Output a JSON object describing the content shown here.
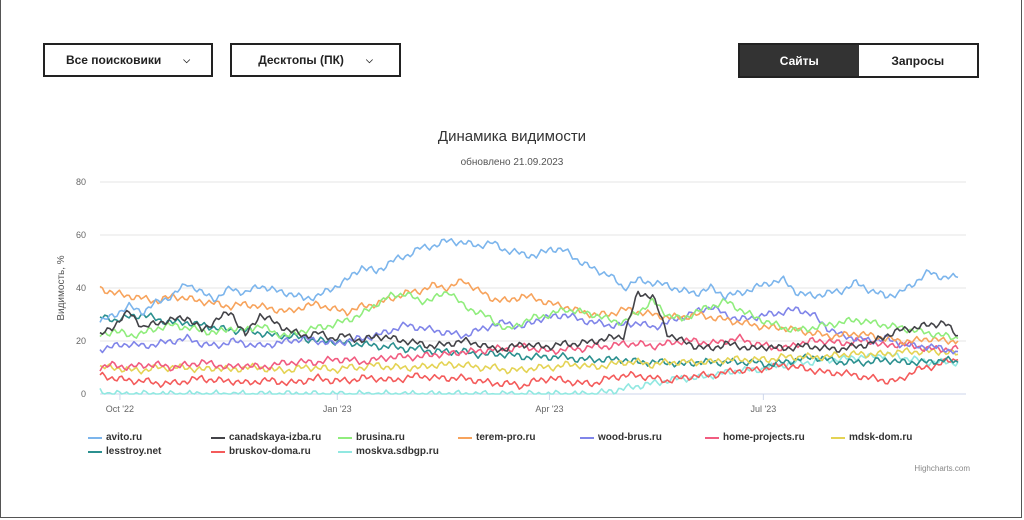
{
  "controls": {
    "engine_label": "Все поисковики",
    "device_label": "Десктопы (ПК)",
    "toggle_sites": "Сайты",
    "toggle_queries": "Запросы"
  },
  "credit": "Highcharts.com",
  "chart_data": {
    "type": "line",
    "title": "Динамика видимости",
    "subtitle": "обновлено 21.09.2023",
    "ylabel": "Видимость, %",
    "xlabel": "",
    "ylim": [
      0,
      80
    ],
    "yticks": [
      "0",
      "20",
      "40",
      "60",
      "80"
    ],
    "xticks": [
      {
        "label": "Oct '22",
        "t": 0.023
      },
      {
        "label": "Jan '23",
        "t": 0.274
      },
      {
        "label": "Apr '23",
        "t": 0.519
      },
      {
        "label": "Jul '23",
        "t": 0.766
      }
    ],
    "x_range": [
      "2022-09-21",
      "2023-09-21"
    ],
    "series": [
      {
        "name": "avito.ru",
        "color": "#7cb5ec",
        "values": [
          27,
          30,
          33,
          31,
          35,
          37,
          42,
          38,
          36,
          40,
          38,
          41,
          39,
          38,
          36,
          37,
          40,
          43,
          48,
          46,
          50,
          52,
          55,
          56,
          58,
          57,
          56,
          57,
          54,
          53,
          52,
          55,
          54,
          50,
          47,
          45,
          40,
          43,
          42,
          41,
          39,
          38,
          40,
          37,
          38,
          40,
          42,
          43,
          38,
          37,
          38,
          39,
          42,
          39,
          37,
          38,
          42,
          46,
          44,
          44
        ]
      },
      {
        "name": "canadskaya-izba.ru",
        "color": "#434348",
        "values": [
          22,
          26,
          31,
          25,
          27,
          28,
          29,
          24,
          28,
          31,
          22,
          30,
          27,
          24,
          22,
          23,
          21,
          22,
          20,
          22,
          21,
          20,
          19,
          18,
          19,
          20,
          19,
          17,
          17,
          19,
          18,
          18,
          19,
          19,
          20,
          21,
          22,
          38,
          37,
          23,
          20,
          18,
          17,
          19,
          18,
          17,
          18,
          17,
          18,
          18,
          17,
          17,
          18,
          19,
          22,
          24,
          25,
          26,
          27,
          22
        ]
      },
      {
        "name": "brusina.ru",
        "color": "#90ed7d",
        "values": [
          22,
          24,
          22,
          23,
          25,
          26,
          25,
          24,
          23,
          25,
          24,
          26,
          23,
          22,
          24,
          25,
          26,
          28,
          30,
          34,
          37,
          38,
          35,
          36,
          39,
          33,
          31,
          28,
          24,
          27,
          29,
          30,
          32,
          31,
          30,
          28,
          27,
          31,
          35,
          30,
          28,
          31,
          33,
          35,
          32,
          29,
          27,
          25,
          24,
          25,
          26,
          27,
          28,
          27,
          26,
          25,
          24,
          23,
          22,
          21
        ]
      },
      {
        "name": "terem-pro.ru",
        "color": "#f7a35c",
        "values": [
          40,
          38,
          37,
          36,
          35,
          37,
          36,
          35,
          34,
          33,
          34,
          33,
          32,
          31,
          33,
          34,
          32,
          31,
          33,
          34,
          36,
          38,
          39,
          41,
          40,
          43,
          39,
          36,
          35,
          37,
          36,
          34,
          33,
          31,
          30,
          30,
          32,
          31,
          30,
          29,
          29,
          30,
          29,
          28,
          27,
          26,
          25,
          25,
          24,
          23,
          22,
          22,
          23,
          22,
          21,
          20,
          20,
          21,
          20,
          20
        ]
      },
      {
        "name": "wood-brus.ru",
        "color": "#8085e9",
        "values": [
          17,
          18,
          19,
          18,
          19,
          20,
          21,
          19,
          18,
          20,
          19,
          18,
          19,
          20,
          21,
          20,
          19,
          20,
          21,
          22,
          24,
          26,
          25,
          24,
          23,
          22,
          24,
          26,
          27,
          25,
          28,
          29,
          30,
          28,
          27,
          26,
          26,
          27,
          25,
          27,
          29,
          31,
          33,
          30,
          28,
          29,
          30,
          31,
          32,
          30,
          25,
          22,
          21,
          20,
          21,
          19,
          18,
          18,
          17,
          16
        ]
      },
      {
        "name": "home-projects.ru",
        "color": "#f15c80",
        "values": [
          10,
          11,
          10,
          11,
          11,
          10,
          11,
          12,
          11,
          10,
          11,
          10,
          11,
          12,
          12,
          12,
          13,
          13,
          12,
          13,
          14,
          14,
          14,
          15,
          15,
          16,
          16,
          17,
          17,
          18,
          17,
          16,
          17,
          17,
          18,
          18,
          19,
          19,
          18,
          19,
          20,
          20,
          19,
          20,
          21,
          19,
          18,
          17,
          19,
          20,
          20,
          19,
          20,
          20,
          18,
          19,
          18,
          17,
          17,
          17
        ]
      },
      {
        "name": "mdsk-dom.ru",
        "color": "#e4d354",
        "values": [
          10,
          10,
          9,
          9,
          10,
          10,
          10,
          9,
          10,
          9,
          10,
          10,
          9,
          9,
          10,
          10,
          9,
          10,
          10,
          11,
          10,
          10,
          10,
          11,
          11,
          11,
          10,
          10,
          9,
          9,
          10,
          10,
          11,
          11,
          10,
          11,
          12,
          12,
          11,
          12,
          12,
          12,
          12,
          13,
          13,
          13,
          13,
          14,
          14,
          14,
          14,
          15,
          15,
          15,
          15,
          16,
          16,
          16,
          16,
          15
        ]
      },
      {
        "name": "lesstroy.net",
        "color": "#2b908f",
        "values": [
          29,
          28,
          29,
          30,
          28,
          27,
          27,
          26,
          25,
          24,
          24,
          23,
          22,
          22,
          21,
          20,
          20,
          19,
          19,
          18,
          18,
          17,
          17,
          16,
          16,
          16,
          15,
          15,
          15,
          14,
          14,
          14,
          14,
          13,
          13,
          13,
          13,
          12,
          12,
          12,
          11,
          12,
          12,
          12,
          12,
          12,
          11,
          12,
          13,
          14,
          13,
          12,
          12,
          12,
          13,
          12,
          12,
          12,
          13,
          12
        ]
      },
      {
        "name": "bruskov-doma.ru",
        "color": "#f45b5b",
        "values": [
          7,
          6,
          5,
          5,
          4,
          4,
          5,
          6,
          5,
          5,
          4,
          5,
          5,
          4,
          5,
          6,
          5,
          5,
          6,
          6,
          5,
          6,
          7,
          6,
          6,
          6,
          5,
          4,
          4,
          3,
          5,
          6,
          5,
          4,
          4,
          6,
          7,
          7,
          6,
          5,
          6,
          7,
          7,
          8,
          9,
          9,
          10,
          11,
          10,
          9,
          8,
          8,
          7,
          6,
          5,
          5,
          9,
          10,
          12,
          13
        ]
      },
      {
        "name": "moskva.sdbgp.ru",
        "color": "#91e8e1",
        "values": [
          1,
          0,
          0,
          0,
          0,
          0,
          0,
          0,
          0,
          0,
          0,
          0,
          0,
          0,
          0,
          0,
          0,
          0,
          0,
          0,
          0,
          0,
          0,
          0,
          0,
          0,
          0,
          0,
          0,
          0,
          0,
          0,
          0,
          0,
          0,
          1,
          2,
          3,
          4,
          5,
          6,
          6,
          7,
          8,
          9,
          9,
          10,
          11,
          12,
          12,
          13,
          13,
          14,
          14,
          15,
          14,
          13,
          12,
          12,
          12
        ]
      }
    ]
  }
}
